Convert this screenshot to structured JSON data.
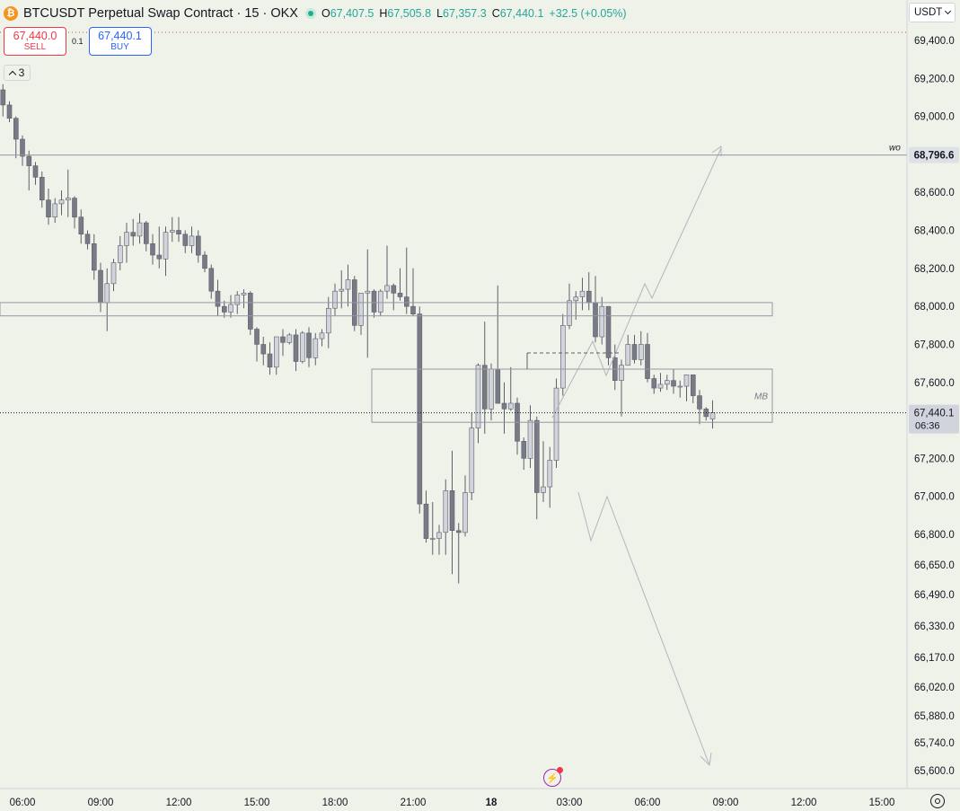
{
  "header": {
    "symbol_title": "BTCUSDT Perpetual Swap Contract · 15 · OKX",
    "open_label": "O",
    "open": "67,407.5",
    "high_label": "H",
    "high": "67,505.8",
    "low_label": "L",
    "low": "67,357.3",
    "close_label": "C",
    "close": "67,440.1",
    "change": "+32.5 (+0.05%)"
  },
  "trade": {
    "sell_price": "67,440.0",
    "sell_label": "SELL",
    "spread": "0.1",
    "buy_price": "67,440.1",
    "buy_label": "BUY"
  },
  "indicators": {
    "count": "3"
  },
  "price_scale": {
    "currency": "USDT"
  },
  "icons": {
    "logo": "bitcoin-logo-icon",
    "status": "market-open-icon",
    "settings": "gear-icon",
    "alert": "lightning-icon",
    "indicator_toggle": "chevron-up-icon"
  },
  "colors": {
    "background": "#eef2e9",
    "candle_up_body": "#d1d4dc",
    "candle_down_body": "#787b86",
    "candle_edge": "#5d606b",
    "sell": "#f23645",
    "buy": "#2962ff",
    "price_line": "#131722"
  },
  "chart_data": {
    "type": "candlestick",
    "y_ticks": [
      "69,400.0",
      "69,200.0",
      "69,000.0",
      "68,800.0",
      "68,600.0",
      "68,400.0",
      "68,200.0",
      "68,000.0",
      "67,800.0",
      "67,600.0",
      "67,400.0",
      "67,200.0",
      "67,000.0",
      "66,800.0",
      "66,650.0",
      "66,490.0",
      "66,330.0",
      "66,170.0",
      "66,020.0",
      "65,880.0",
      "65,740.0",
      "65,600.0"
    ],
    "x_ticks": [
      "06:00",
      "09:00",
      "12:00",
      "15:00",
      "18:00",
      "21:00",
      "18",
      "03:00",
      "06:00",
      "09:00",
      "12:00",
      "15:00"
    ],
    "x_tick_bold": "18",
    "candle_interval_minutes": 15,
    "first_candle_time": "05:15",
    "candles": [
      {
        "o": 69140,
        "h": 69170,
        "l": 69000,
        "c": 69060
      },
      {
        "o": 69060,
        "h": 69080,
        "l": 68970,
        "c": 68990
      },
      {
        "o": 68990,
        "h": 69000,
        "l": 68780,
        "c": 68880
      },
      {
        "o": 68880,
        "h": 68900,
        "l": 68740,
        "c": 68790
      },
      {
        "o": 68790,
        "h": 68820,
        "l": 68610,
        "c": 68740
      },
      {
        "o": 68740,
        "h": 68760,
        "l": 68640,
        "c": 68680
      },
      {
        "o": 68680,
        "h": 68710,
        "l": 68520,
        "c": 68560
      },
      {
        "o": 68560,
        "h": 68620,
        "l": 68430,
        "c": 68470
      },
      {
        "o": 68470,
        "h": 68570,
        "l": 68440,
        "c": 68540
      },
      {
        "o": 68540,
        "h": 68610,
        "l": 68480,
        "c": 68560
      },
      {
        "o": 68560,
        "h": 68720,
        "l": 68470,
        "c": 68570
      },
      {
        "o": 68570,
        "h": 68580,
        "l": 68410,
        "c": 68470
      },
      {
        "o": 68470,
        "h": 68510,
        "l": 68330,
        "c": 68380
      },
      {
        "o": 68380,
        "h": 68400,
        "l": 68300,
        "c": 68330
      },
      {
        "o": 68330,
        "h": 68380,
        "l": 68140,
        "c": 68190
      },
      {
        "o": 68190,
        "h": 68230,
        "l": 67970,
        "c": 68020
      },
      {
        "o": 68020,
        "h": 68200,
        "l": 67870,
        "c": 68120
      },
      {
        "o": 68120,
        "h": 68250,
        "l": 68080,
        "c": 68230
      },
      {
        "o": 68230,
        "h": 68370,
        "l": 68190,
        "c": 68320
      },
      {
        "o": 68320,
        "h": 68440,
        "l": 68230,
        "c": 68390
      },
      {
        "o": 68390,
        "h": 68460,
        "l": 68320,
        "c": 68370
      },
      {
        "o": 68370,
        "h": 68490,
        "l": 68330,
        "c": 68440
      },
      {
        "o": 68440,
        "h": 68450,
        "l": 68290,
        "c": 68330
      },
      {
        "o": 68330,
        "h": 68380,
        "l": 68220,
        "c": 68270
      },
      {
        "o": 68270,
        "h": 68420,
        "l": 68200,
        "c": 68250
      },
      {
        "o": 68250,
        "h": 68420,
        "l": 68160,
        "c": 68390
      },
      {
        "o": 68390,
        "h": 68470,
        "l": 68340,
        "c": 68400
      },
      {
        "o": 68400,
        "h": 68470,
        "l": 68340,
        "c": 68380
      },
      {
        "o": 68380,
        "h": 68400,
        "l": 68280,
        "c": 68320
      },
      {
        "o": 68320,
        "h": 68420,
        "l": 68280,
        "c": 68370
      },
      {
        "o": 68370,
        "h": 68400,
        "l": 68230,
        "c": 68270
      },
      {
        "o": 68270,
        "h": 68290,
        "l": 68180,
        "c": 68200
      },
      {
        "o": 68200,
        "h": 68220,
        "l": 68040,
        "c": 68080
      },
      {
        "o": 68080,
        "h": 68140,
        "l": 67950,
        "c": 68000
      },
      {
        "o": 68000,
        "h": 68030,
        "l": 67940,
        "c": 67970
      },
      {
        "o": 67970,
        "h": 68060,
        "l": 67940,
        "c": 68010
      },
      {
        "o": 68010,
        "h": 68080,
        "l": 67960,
        "c": 68060
      },
      {
        "o": 68060,
        "h": 68090,
        "l": 67990,
        "c": 68070
      },
      {
        "o": 68070,
        "h": 68080,
        "l": 67850,
        "c": 67880
      },
      {
        "o": 67880,
        "h": 67890,
        "l": 67710,
        "c": 67800
      },
      {
        "o": 67800,
        "h": 67840,
        "l": 67690,
        "c": 67750
      },
      {
        "o": 67750,
        "h": 67810,
        "l": 67640,
        "c": 67680
      },
      {
        "o": 67680,
        "h": 67840,
        "l": 67640,
        "c": 67840
      },
      {
        "o": 67840,
        "h": 67880,
        "l": 67740,
        "c": 67810
      },
      {
        "o": 67810,
        "h": 67860,
        "l": 67800,
        "c": 67850
      },
      {
        "o": 67850,
        "h": 67880,
        "l": 67660,
        "c": 67710
      },
      {
        "o": 67710,
        "h": 67870,
        "l": 67700,
        "c": 67860
      },
      {
        "o": 67860,
        "h": 67890,
        "l": 67680,
        "c": 67730
      },
      {
        "o": 67730,
        "h": 67860,
        "l": 67690,
        "c": 67830
      },
      {
        "o": 67830,
        "h": 67880,
        "l": 67790,
        "c": 67860
      },
      {
        "o": 67860,
        "h": 68050,
        "l": 67780,
        "c": 67990
      },
      {
        "o": 67990,
        "h": 68120,
        "l": 67950,
        "c": 68080
      },
      {
        "o": 68080,
        "h": 68190,
        "l": 67990,
        "c": 68090
      },
      {
        "o": 68090,
        "h": 68220,
        "l": 68000,
        "c": 68140
      },
      {
        "o": 68140,
        "h": 68160,
        "l": 67870,
        "c": 67900
      },
      {
        "o": 67900,
        "h": 68050,
        "l": 67850,
        "c": 68070
      },
      {
        "o": 68070,
        "h": 68300,
        "l": 67730,
        "c": 68080
      },
      {
        "o": 68080,
        "h": 68090,
        "l": 67940,
        "c": 67970
      },
      {
        "o": 67970,
        "h": 68090,
        "l": 67950,
        "c": 68080
      },
      {
        "o": 68080,
        "h": 68320,
        "l": 68040,
        "c": 68110
      },
      {
        "o": 68110,
        "h": 68120,
        "l": 67980,
        "c": 68070
      },
      {
        "o": 68070,
        "h": 68200,
        "l": 68030,
        "c": 68050
      },
      {
        "o": 68050,
        "h": 68310,
        "l": 67960,
        "c": 68000
      },
      {
        "o": 68000,
        "h": 68200,
        "l": 67950,
        "c": 67960
      },
      {
        "o": 67960,
        "h": 68000,
        "l": 66910,
        "c": 66960
      },
      {
        "o": 66960,
        "h": 67030,
        "l": 66760,
        "c": 66780
      },
      {
        "o": 66780,
        "h": 66970,
        "l": 66700,
        "c": 66780
      },
      {
        "o": 66780,
        "h": 66850,
        "l": 66700,
        "c": 66810
      },
      {
        "o": 66810,
        "h": 67090,
        "l": 66700,
        "c": 67030
      },
      {
        "o": 67030,
        "h": 67240,
        "l": 66600,
        "c": 66820
      },
      {
        "o": 66820,
        "h": 66860,
        "l": 66550,
        "c": 66810
      },
      {
        "o": 66810,
        "h": 67110,
        "l": 66790,
        "c": 67020
      },
      {
        "o": 67020,
        "h": 67440,
        "l": 66980,
        "c": 67360
      },
      {
        "o": 67360,
        "h": 67700,
        "l": 67280,
        "c": 67690
      },
      {
        "o": 67690,
        "h": 67920,
        "l": 67330,
        "c": 67460
      },
      {
        "o": 67460,
        "h": 67700,
        "l": 67400,
        "c": 67670
      },
      {
        "o": 67670,
        "h": 68110,
        "l": 67500,
        "c": 67490
      },
      {
        "o": 67490,
        "h": 67600,
        "l": 67330,
        "c": 67460
      },
      {
        "o": 67460,
        "h": 67680,
        "l": 67450,
        "c": 67490
      },
      {
        "o": 67490,
        "h": 67520,
        "l": 67220,
        "c": 67290
      },
      {
        "o": 67290,
        "h": 67310,
        "l": 67140,
        "c": 67200
      },
      {
        "o": 67200,
        "h": 67480,
        "l": 67150,
        "c": 67400
      },
      {
        "o": 67400,
        "h": 67420,
        "l": 66880,
        "c": 67020
      },
      {
        "o": 67020,
        "h": 67290,
        "l": 66970,
        "c": 67050
      },
      {
        "o": 67050,
        "h": 67260,
        "l": 66940,
        "c": 67190
      },
      {
        "o": 67190,
        "h": 67620,
        "l": 67150,
        "c": 67570
      },
      {
        "o": 67570,
        "h": 67960,
        "l": 67530,
        "c": 67900
      },
      {
        "o": 67900,
        "h": 68120,
        "l": 67880,
        "c": 68030
      },
      {
        "o": 68030,
        "h": 68080,
        "l": 67930,
        "c": 68050
      },
      {
        "o": 68050,
        "h": 68150,
        "l": 67980,
        "c": 68080
      },
      {
        "o": 68080,
        "h": 68180,
        "l": 67980,
        "c": 68020
      },
      {
        "o": 68020,
        "h": 68160,
        "l": 67810,
        "c": 67840
      },
      {
        "o": 67840,
        "h": 68050,
        "l": 67800,
        "c": 68000
      },
      {
        "o": 68000,
        "h": 68000,
        "l": 67690,
        "c": 67730
      },
      {
        "o": 67730,
        "h": 67800,
        "l": 67560,
        "c": 67610
      },
      {
        "o": 67610,
        "h": 67720,
        "l": 67420,
        "c": 67690
      },
      {
        "o": 67690,
        "h": 67850,
        "l": 67690,
        "c": 67800
      },
      {
        "o": 67800,
        "h": 67850,
        "l": 67700,
        "c": 67720
      },
      {
        "o": 67720,
        "h": 67870,
        "l": 67690,
        "c": 67800
      },
      {
        "o": 67800,
        "h": 67860,
        "l": 67600,
        "c": 67620
      },
      {
        "o": 67620,
        "h": 67640,
        "l": 67540,
        "c": 67570
      },
      {
        "o": 67570,
        "h": 67650,
        "l": 67550,
        "c": 67590
      },
      {
        "o": 67590,
        "h": 67640,
        "l": 67560,
        "c": 67610
      },
      {
        "o": 67610,
        "h": 67670,
        "l": 67540,
        "c": 67580
      },
      {
        "o": 67580,
        "h": 67610,
        "l": 67520,
        "c": 67580
      },
      {
        "o": 67580,
        "h": 67640,
        "l": 67500,
        "c": 67640
      },
      {
        "o": 67640,
        "h": 67640,
        "l": 67490,
        "c": 67530
      },
      {
        "o": 67530,
        "h": 67560,
        "l": 67380,
        "c": 67460
      },
      {
        "o": 67460,
        "h": 67470,
        "l": 67400,
        "c": 67420
      },
      {
        "o": 67407.5,
        "h": 67505.8,
        "l": 67357.3,
        "c": 67440.1
      }
    ],
    "last_price": "67,440.1",
    "last_price_value": 67440.1,
    "countdown": "06:36",
    "horizontal_line": {
      "label": "wo",
      "price": "68,796.6",
      "value": 68796.6
    },
    "sell_line_value": 67440.0,
    "zones": [
      {
        "label": "",
        "top": 68020,
        "bottom": 67950
      },
      {
        "label": "MB",
        "top": 67670,
        "bottom": 67390
      }
    ]
  }
}
